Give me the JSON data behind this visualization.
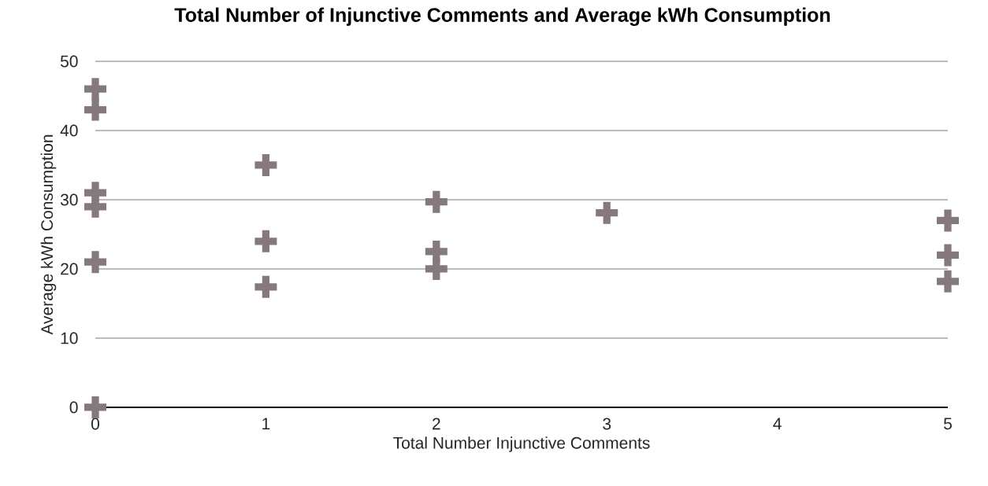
{
  "chart_data": {
    "type": "scatter",
    "title": "Total Number of Injunctive Comments and Average kWh Consumption",
    "xlabel": "Total Number Injunctive Comments",
    "ylabel": "Average kWh Consumption",
    "x": [
      0,
      0,
      0,
      0,
      0,
      0,
      1,
      1,
      1,
      2,
      2,
      2,
      3,
      5,
      5,
      5
    ],
    "values": [
      46,
      43,
      31,
      29,
      21,
      0,
      35,
      24,
      17.4,
      29.7,
      22.5,
      20,
      28.1,
      27,
      22,
      18.2
    ],
    "color": "#85797d",
    "marker": "cross",
    "xlim": [
      0,
      5
    ],
    "xticks": [
      0,
      1,
      2,
      3,
      4,
      5
    ],
    "ylim": [
      0,
      50
    ],
    "yticks": [
      0,
      10,
      20,
      30,
      40,
      50
    ],
    "grid": "y"
  }
}
